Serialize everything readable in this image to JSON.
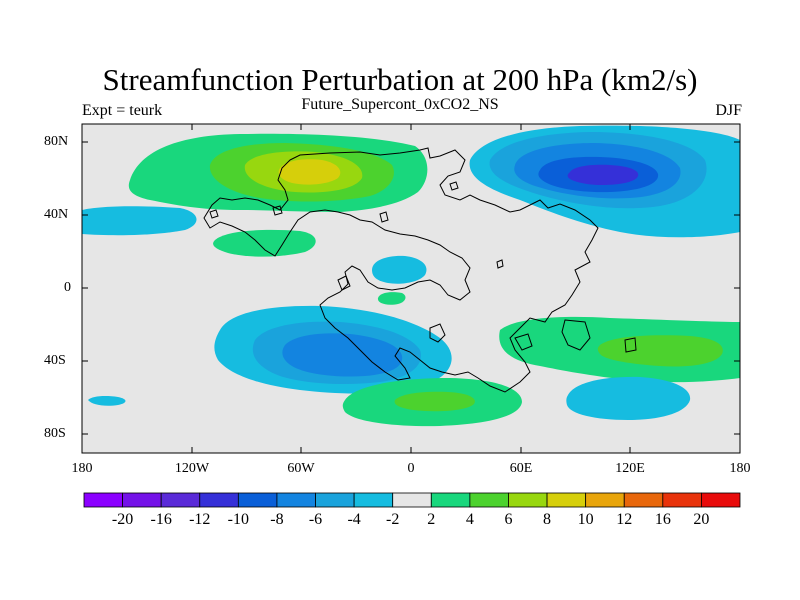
{
  "title": "Streamfunction Perturbation at 200 hPa (km2/s)",
  "subtitle": "Future_Supercont_0xCO2_NS",
  "left_string": "Expt = teurk",
  "right_string": "DJF",
  "lat_ticks": [
    "80N",
    "40N",
    "0",
    "40S",
    "80S"
  ],
  "lon_ticks": [
    "180",
    "120W",
    "60W",
    "0",
    "60E",
    "120E",
    "180"
  ],
  "colorbar": {
    "labels": [
      "-20",
      "-16",
      "-12",
      "-10",
      "-8",
      "-6",
      "-4",
      "-2",
      "2",
      "4",
      "6",
      "8",
      "10",
      "12",
      "16",
      "20"
    ],
    "colors": [
      "#8b00ff",
      "#7412e8",
      "#5a2ad8",
      "#3530d8",
      "#0a5fd8",
      "#1384e0",
      "#1aa3dc",
      "#16bce0",
      "#e6e6e6",
      "#19d77d",
      "#4cd22e",
      "#98d70f",
      "#d6cf0b",
      "#e8a50b",
      "#e8670b",
      "#e8330b",
      "#e80b0b"
    ]
  },
  "chart_data": {
    "type": "contour_map",
    "variable": "Streamfunction Perturbation",
    "level": "200 hPa",
    "units": "km2/s",
    "season": "DJF",
    "experiment": "teurk",
    "case": "Future_Supercont_0xCO2_NS",
    "x_range": [
      -180,
      180
    ],
    "y_range": [
      -90,
      90
    ],
    "contour_levels": [
      -20,
      -16,
      -12,
      -10,
      -8,
      -6,
      -4,
      -2,
      2,
      4,
      6,
      8,
      10,
      12,
      16,
      20
    ],
    "features": [
      {
        "region": "Northern mid-latitudes, 60W",
        "peak": 8
      },
      {
        "region": "North Pacific / East Asia, 100E-120E",
        "peak": -10
      },
      {
        "region": "Southern mid-latitudes, 40W",
        "peak": -8
      },
      {
        "region": "South Indian Ocean, 120E",
        "peak": 6
      },
      {
        "region": "South Atlantic, 10E",
        "peak": 4
      },
      {
        "region": "South Indian Ocean, 100E",
        "peak": -2
      },
      {
        "region": "Equatorial Atlantic, 20W",
        "peak": -2
      },
      {
        "region": "North Pacific, 170W",
        "peak": -2
      },
      {
        "region": "Tropical East Pacific, 80W",
        "peak": 2
      }
    ]
  }
}
